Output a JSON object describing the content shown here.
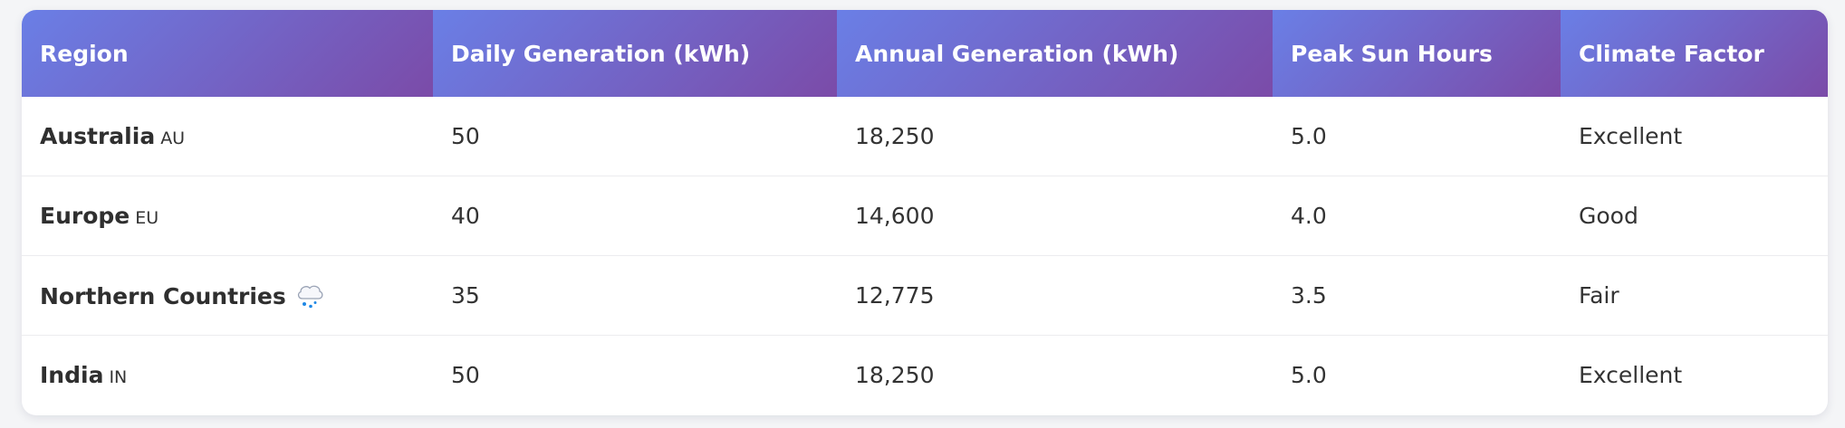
{
  "table": {
    "headers": [
      "Region",
      "Daily Generation (kWh)",
      "Annual Generation (kWh)",
      "Peak Sun Hours",
      "Climate Factor"
    ],
    "rows": [
      {
        "region": "Australia",
        "code": "AU",
        "icon": null,
        "daily": "50",
        "annual": "18,250",
        "sun_hours": "5.0",
        "climate": "Excellent"
      },
      {
        "region": "Europe",
        "code": "EU",
        "icon": null,
        "daily": "40",
        "annual": "14,600",
        "sun_hours": "4.0",
        "climate": "Good"
      },
      {
        "region": "Northern Countries",
        "code": null,
        "icon": "cloud-rain-icon",
        "daily": "35",
        "annual": "12,775",
        "sun_hours": "3.5",
        "climate": "Fair"
      },
      {
        "region": "India",
        "code": "IN",
        "icon": null,
        "daily": "50",
        "annual": "18,250",
        "sun_hours": "5.0",
        "climate": "Excellent"
      }
    ]
  },
  "colors": {
    "header_gradient_start": "#6a7fe6",
    "header_gradient_end": "#7b4ba8"
  }
}
